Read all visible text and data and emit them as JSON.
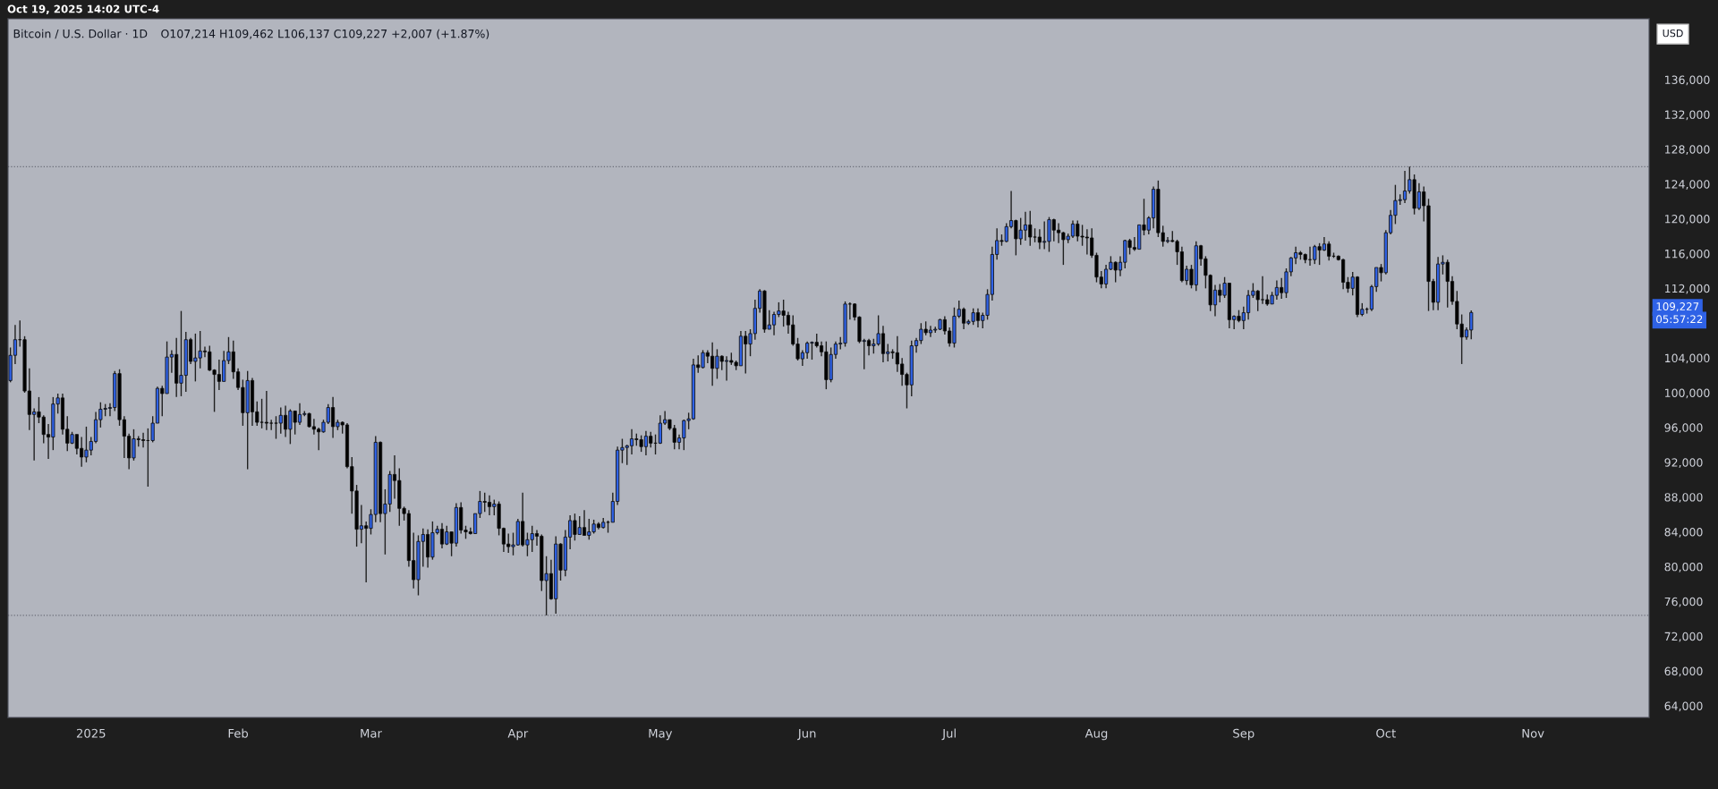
{
  "chart_data": {
    "type": "candlestick",
    "title": "Bitcoin / U.S. Dollar · 1D",
    "subtitle": "O107,214 H109,462 L106,137 C109,227 +2,007 (+1.87%)",
    "ylabel": "USD",
    "annotations": [
      "Oct 19, 2025 14:02 UTC-4",
      "109,227",
      "05:57:22"
    ],
    "x": [
      "2024-12-15",
      "2024-12-16",
      "2024-12-17",
      "2024-12-18",
      "2024-12-19",
      "2024-12-20",
      "2024-12-21",
      "2024-12-22",
      "2024-12-23",
      "2024-12-24",
      "2024-12-25",
      "2024-12-26",
      "2024-12-27",
      "2024-12-28",
      "2024-12-29",
      "2024-12-30",
      "2024-12-31",
      "2025-01-01",
      "2025-01-02",
      "2025-01-03",
      "2025-01-04",
      "2025-01-05",
      "2025-01-06",
      "2025-01-07",
      "2025-01-08",
      "2025-01-09",
      "2025-01-10",
      "2025-01-11",
      "2025-01-12",
      "2025-01-13",
      "2025-01-14",
      "2025-01-15",
      "2025-01-16",
      "2025-01-17",
      "2025-01-18",
      "2025-01-19",
      "2025-01-20",
      "2025-01-21",
      "2025-01-22",
      "2025-01-23",
      "2025-01-24",
      "2025-01-25",
      "2025-01-26",
      "2025-01-27",
      "2025-01-28",
      "2025-01-29",
      "2025-01-30",
      "2025-01-31",
      "2025-02-01",
      "2025-02-02",
      "2025-02-03",
      "2025-02-04",
      "2025-02-05",
      "2025-02-06",
      "2025-02-07",
      "2025-02-08",
      "2025-02-09",
      "2025-02-10",
      "2025-02-11",
      "2025-02-12",
      "2025-02-13",
      "2025-02-14",
      "2025-02-15",
      "2025-02-16",
      "2025-02-17",
      "2025-02-18",
      "2025-02-19",
      "2025-02-20",
      "2025-02-21",
      "2025-02-22",
      "2025-02-23",
      "2025-02-24",
      "2025-02-25",
      "2025-02-26",
      "2025-02-27",
      "2025-02-28",
      "2025-03-01",
      "2025-03-02",
      "2025-03-03",
      "2025-03-04",
      "2025-03-05",
      "2025-03-06",
      "2025-03-07",
      "2025-03-08",
      "2025-03-09",
      "2025-03-10",
      "2025-03-11",
      "2025-03-12",
      "2025-03-13",
      "2025-03-14",
      "2025-03-15",
      "2025-03-16",
      "2025-03-17",
      "2025-03-18",
      "2025-03-19",
      "2025-03-20",
      "2025-03-21",
      "2025-03-22",
      "2025-03-23",
      "2025-03-24",
      "2025-03-25",
      "2025-03-26",
      "2025-03-27",
      "2025-03-28",
      "2025-03-29",
      "2025-03-30",
      "2025-03-31",
      "2025-04-01",
      "2025-04-02",
      "2025-04-03",
      "2025-04-04",
      "2025-04-05",
      "2025-04-06",
      "2025-04-07",
      "2025-04-08",
      "2025-04-09",
      "2025-04-10",
      "2025-04-11",
      "2025-04-12",
      "2025-04-13",
      "2025-04-14",
      "2025-04-15",
      "2025-04-16",
      "2025-04-17",
      "2025-04-18",
      "2025-04-19",
      "2025-04-20",
      "2025-04-21",
      "2025-04-22",
      "2025-04-23",
      "2025-04-24",
      "2025-04-25",
      "2025-04-26",
      "2025-04-27",
      "2025-04-28",
      "2025-04-29",
      "2025-04-30",
      "2025-05-01",
      "2025-05-02",
      "2025-05-03",
      "2025-05-04",
      "2025-05-05",
      "2025-05-06",
      "2025-05-07",
      "2025-05-08",
      "2025-05-09",
      "2025-05-10",
      "2025-05-11",
      "2025-05-12",
      "2025-05-13",
      "2025-05-14",
      "2025-05-15",
      "2025-05-16",
      "2025-05-17",
      "2025-05-18",
      "2025-05-19",
      "2025-05-20",
      "2025-05-21",
      "2025-05-22",
      "2025-05-23",
      "2025-05-24",
      "2025-05-25",
      "2025-05-26",
      "2025-05-27",
      "2025-05-28",
      "2025-05-29",
      "2025-05-30",
      "2025-05-31",
      "2025-06-01",
      "2025-06-02",
      "2025-06-03",
      "2025-06-04",
      "2025-06-05",
      "2025-06-06",
      "2025-06-07",
      "2025-06-08",
      "2025-06-09",
      "2025-06-10",
      "2025-06-11",
      "2025-06-12",
      "2025-06-13",
      "2025-06-14",
      "2025-06-15",
      "2025-06-16",
      "2025-06-17",
      "2025-06-18",
      "2025-06-19",
      "2025-06-20",
      "2025-06-21",
      "2025-06-22",
      "2025-06-23",
      "2025-06-24",
      "2025-06-25",
      "2025-06-26",
      "2025-06-27",
      "2025-06-28",
      "2025-06-29",
      "2025-06-30",
      "2025-07-01",
      "2025-07-02",
      "2025-07-03",
      "2025-07-04",
      "2025-07-05",
      "2025-07-06",
      "2025-07-07",
      "2025-07-08",
      "2025-07-09",
      "2025-07-10",
      "2025-07-11",
      "2025-07-12",
      "2025-07-13",
      "2025-07-14",
      "2025-07-15",
      "2025-07-16",
      "2025-07-17",
      "2025-07-18",
      "2025-07-19",
      "2025-07-20",
      "2025-07-21",
      "2025-07-22",
      "2025-07-23",
      "2025-07-24",
      "2025-07-25",
      "2025-07-26",
      "2025-07-27",
      "2025-07-28",
      "2025-07-29",
      "2025-07-30",
      "2025-07-31",
      "2025-08-01",
      "2025-08-02",
      "2025-08-03",
      "2025-08-04",
      "2025-08-05",
      "2025-08-06",
      "2025-08-07",
      "2025-08-08",
      "2025-08-09",
      "2025-08-10",
      "2025-08-11",
      "2025-08-12",
      "2025-08-13",
      "2025-08-14",
      "2025-08-15",
      "2025-08-16",
      "2025-08-17",
      "2025-08-18",
      "2025-08-19",
      "2025-08-20",
      "2025-08-21",
      "2025-08-22",
      "2025-08-23",
      "2025-08-24",
      "2025-08-25",
      "2025-08-26",
      "2025-08-27",
      "2025-08-28",
      "2025-08-29",
      "2025-08-30",
      "2025-08-31",
      "2025-09-01",
      "2025-09-02",
      "2025-09-03",
      "2025-09-04",
      "2025-09-05",
      "2025-09-06",
      "2025-09-07",
      "2025-09-08",
      "2025-09-09",
      "2025-09-10",
      "2025-09-11",
      "2025-09-12",
      "2025-09-13",
      "2025-09-14",
      "2025-09-15",
      "2025-09-16",
      "2025-09-17",
      "2025-09-18",
      "2025-09-19",
      "2025-09-20",
      "2025-09-21",
      "2025-09-22",
      "2025-09-23",
      "2025-09-24",
      "2025-09-25",
      "2025-09-26",
      "2025-09-27",
      "2025-09-28",
      "2025-09-29",
      "2025-09-30",
      "2025-10-01",
      "2025-10-02",
      "2025-10-03",
      "2025-10-04",
      "2025-10-05",
      "2025-10-06",
      "2025-10-07",
      "2025-10-08",
      "2025-10-09",
      "2025-10-10",
      "2025-10-11",
      "2025-10-12",
      "2025-10-13",
      "2025-10-14",
      "2025-10-15",
      "2025-10-16",
      "2025-10-17",
      "2025-10-18",
      "2025-10-19"
    ],
    "ohlc": [
      [
        101400,
        105200,
        101200,
        104300
      ],
      [
        104300,
        107800,
        103300,
        106100
      ],
      [
        106100,
        108300,
        105300,
        106100
      ],
      [
        106100,
        106500,
        100000,
        100200
      ],
      [
        100200,
        102800,
        95700,
        97500
      ],
      [
        97500,
        98200,
        92200,
        97800
      ],
      [
        97800,
        99500,
        96500,
        97200
      ],
      [
        97200,
        97400,
        94200,
        95200
      ],
      [
        95200,
        96400,
        92400,
        94900
      ],
      [
        94900,
        99500,
        93400,
        98700
      ],
      [
        98700,
        99900,
        97600,
        99400
      ],
      [
        99400,
        99900,
        95200,
        95800
      ],
      [
        95800,
        97300,
        93300,
        94200
      ],
      [
        94200,
        95500,
        94100,
        95200
      ],
      [
        95200,
        95200,
        92900,
        93600
      ],
      [
        93600,
        94900,
        91500,
        92600
      ],
      [
        92600,
        96100,
        92000,
        93400
      ],
      [
        93400,
        94900,
        92800,
        94400
      ],
      [
        94400,
        97800,
        94200,
        96900
      ],
      [
        96900,
        98900,
        96000,
        98100
      ],
      [
        98100,
        98700,
        97300,
        98200
      ],
      [
        98200,
        98800,
        97300,
        98300
      ],
      [
        98300,
        102500,
        97900,
        102200
      ],
      [
        102200,
        102700,
        96200,
        96900
      ],
      [
        96900,
        97300,
        92500,
        95000
      ],
      [
        95000,
        95300,
        91200,
        92500
      ],
      [
        92500,
        95800,
        92200,
        94700
      ],
      [
        94700,
        95000,
        93800,
        94600
      ],
      [
        94600,
        95400,
        93700,
        94500
      ],
      [
        94500,
        95900,
        89200,
        94500
      ],
      [
        94500,
        97300,
        94300,
        96500
      ],
      [
        96500,
        100700,
        96500,
        100500
      ],
      [
        100500,
        100800,
        97300,
        99900
      ],
      [
        99900,
        105900,
        99900,
        104100
      ],
      [
        104100,
        104900,
        102300,
        104400
      ],
      [
        104400,
        106300,
        99500,
        101100
      ],
      [
        101100,
        109400,
        99600,
        102000
      ],
      [
        102000,
        107000,
        100100,
        106100
      ],
      [
        106100,
        106300,
        103300,
        103600
      ],
      [
        103600,
        106800,
        101300,
        104000
      ],
      [
        104000,
        107100,
        102800,
        104800
      ],
      [
        104800,
        105300,
        104100,
        104700
      ],
      [
        104700,
        105400,
        102500,
        102600
      ],
      [
        102600,
        102700,
        97800,
        102100
      ],
      [
        102100,
        103800,
        100300,
        101300
      ],
      [
        101300,
        104800,
        101300,
        103700
      ],
      [
        103700,
        106400,
        103300,
        104700
      ],
      [
        104700,
        106000,
        101600,
        102400
      ],
      [
        102400,
        102800,
        100300,
        100600
      ],
      [
        100600,
        101500,
        96200,
        97700
      ],
      [
        97700,
        102500,
        91200,
        101400
      ],
      [
        101400,
        101700,
        96200,
        97800
      ],
      [
        97800,
        99000,
        96200,
        96600
      ],
      [
        96600,
        99300,
        95900,
        96600
      ],
      [
        96600,
        100200,
        95700,
        96500
      ],
      [
        96500,
        96900,
        95700,
        96500
      ],
      [
        96500,
        97300,
        94700,
        96500
      ],
      [
        96500,
        98300,
        95300,
        97400
      ],
      [
        97400,
        98500,
        94900,
        95800
      ],
      [
        95800,
        98100,
        94100,
        97900
      ],
      [
        97900,
        97900,
        95200,
        96600
      ],
      [
        96600,
        98800,
        96300,
        97500
      ],
      [
        97500,
        97900,
        97300,
        97600
      ],
      [
        97600,
        97700,
        96000,
        96100
      ],
      [
        96100,
        97000,
        95200,
        95800
      ],
      [
        95800,
        96000,
        93400,
        95500
      ],
      [
        95500,
        96900,
        95400,
        96600
      ],
      [
        96600,
        98700,
        96400,
        98300
      ],
      [
        98300,
        99500,
        94800,
        96100
      ],
      [
        96100,
        96900,
        95700,
        96600
      ],
      [
        96600,
        96700,
        95300,
        96300
      ],
      [
        96300,
        96500,
        91300,
        91500
      ],
      [
        91500,
        92600,
        86100,
        88700
      ],
      [
        88700,
        89400,
        82300,
        84300
      ],
      [
        84300,
        87100,
        82700,
        84700
      ],
      [
        84700,
        85200,
        78200,
        84400
      ],
      [
        84400,
        86600,
        83700,
        86000
      ],
      [
        86000,
        95000,
        85100,
        94300
      ],
      [
        94300,
        94400,
        85100,
        86100
      ],
      [
        86100,
        88900,
        81400,
        87200
      ],
      [
        87200,
        91000,
        86300,
        90600
      ],
      [
        90600,
        92800,
        87800,
        89900
      ],
      [
        89900,
        91300,
        84700,
        86700
      ],
      [
        86700,
        86900,
        85300,
        86100
      ],
      [
        86100,
        86500,
        80000,
        80700
      ],
      [
        80700,
        83900,
        77500,
        78500
      ],
      [
        78500,
        83600,
        76700,
        82900
      ],
      [
        82900,
        84400,
        80000,
        83700
      ],
      [
        83700,
        84300,
        79900,
        81100
      ],
      [
        81100,
        85200,
        80800,
        83900
      ],
      [
        83900,
        84700,
        83700,
        84300
      ],
      [
        84300,
        85000,
        82100,
        82600
      ],
      [
        82600,
        84700,
        82500,
        84000
      ],
      [
        84000,
        84000,
        81200,
        82700
      ],
      [
        82700,
        87300,
        82300,
        86800
      ],
      [
        86800,
        87400,
        83800,
        84200
      ],
      [
        84200,
        84700,
        83200,
        84000
      ],
      [
        84000,
        84500,
        83700,
        83800
      ],
      [
        83800,
        86100,
        83800,
        86100
      ],
      [
        86100,
        88700,
        85600,
        87500
      ],
      [
        87500,
        88500,
        86300,
        87400
      ],
      [
        87400,
        88200,
        85900,
        86900
      ],
      [
        86900,
        87700,
        85900,
        87200
      ],
      [
        87200,
        87500,
        83600,
        84400
      ],
      [
        84400,
        84500,
        81700,
        82600
      ],
      [
        82600,
        83800,
        81600,
        82300
      ],
      [
        82300,
        83900,
        81300,
        82500
      ],
      [
        82500,
        85500,
        82400,
        85200
      ],
      [
        85200,
        88500,
        82300,
        82500
      ],
      [
        82500,
        83900,
        81200,
        83100
      ],
      [
        83100,
        84700,
        81700,
        83800
      ],
      [
        83800,
        84200,
        82400,
        83500
      ],
      [
        83500,
        83700,
        77200,
        78400
      ],
      [
        78400,
        81200,
        74400,
        79200
      ],
      [
        79200,
        80800,
        76200,
        76300
      ],
      [
        76300,
        83500,
        74600,
        82600
      ],
      [
        82600,
        82700,
        78400,
        79600
      ],
      [
        79600,
        84200,
        78900,
        83400
      ],
      [
        83400,
        85900,
        82000,
        85300
      ],
      [
        85300,
        86100,
        83000,
        83700
      ],
      [
        83700,
        85800,
        83700,
        84500
      ],
      [
        84500,
        86500,
        83600,
        83600
      ],
      [
        83600,
        85500,
        83100,
        84000
      ],
      [
        84000,
        85400,
        83800,
        84900
      ],
      [
        84900,
        85100,
        84300,
        84500
      ],
      [
        84500,
        85600,
        84400,
        85100
      ],
      [
        85100,
        85300,
        83900,
        85100
      ],
      [
        85100,
        88500,
        85100,
        87500
      ],
      [
        87500,
        93800,
        87100,
        93400
      ],
      [
        93400,
        94700,
        91900,
        93700
      ],
      [
        93700,
        94000,
        91700,
        93900
      ],
      [
        93900,
        95800,
        92900,
        94700
      ],
      [
        94700,
        95300,
        93900,
        94600
      ],
      [
        94600,
        95100,
        93200,
        93800
      ],
      [
        93800,
        95600,
        92800,
        95000
      ],
      [
        95000,
        95500,
        93700,
        94200
      ],
      [
        94200,
        95200,
        92900,
        94200
      ],
      [
        94200,
        97400,
        94100,
        96500
      ],
      [
        96500,
        97900,
        96300,
        96900
      ],
      [
        96900,
        96900,
        95700,
        95900
      ],
      [
        95900,
        96300,
        93500,
        94300
      ],
      [
        94300,
        95200,
        93500,
        94800
      ],
      [
        94800,
        96900,
        93400,
        96800
      ],
      [
        96800,
        97700,
        95800,
        97000
      ],
      [
        97000,
        103900,
        96900,
        103200
      ],
      [
        103200,
        104300,
        102300,
        102900
      ],
      [
        102900,
        104900,
        102800,
        104600
      ],
      [
        104600,
        104900,
        103400,
        104200
      ],
      [
        104200,
        105800,
        100800,
        102800
      ],
      [
        102800,
        105000,
        101600,
        104200
      ],
      [
        104200,
        104300,
        102600,
        103600
      ],
      [
        103600,
        104200,
        101400,
        103700
      ],
      [
        103700,
        104600,
        103200,
        103500
      ],
      [
        103500,
        103700,
        102600,
        103100
      ],
      [
        103100,
        107100,
        103100,
        106500
      ],
      [
        106500,
        107100,
        102200,
        105600
      ],
      [
        105600,
        107300,
        104200,
        106800
      ],
      [
        106800,
        110700,
        106100,
        109700
      ],
      [
        109700,
        111900,
        109200,
        111700
      ],
      [
        111700,
        111800,
        106900,
        107300
      ],
      [
        107300,
        109500,
        107300,
        107800
      ],
      [
        107800,
        109300,
        106600,
        109000
      ],
      [
        109000,
        110400,
        108700,
        109400
      ],
      [
        109400,
        110700,
        107600,
        108900
      ],
      [
        108900,
        109300,
        106800,
        107800
      ],
      [
        107800,
        108900,
        105400,
        105600
      ],
      [
        105600,
        106300,
        103700,
        103900
      ],
      [
        103900,
        104900,
        103100,
        104600
      ],
      [
        104600,
        105900,
        103900,
        105700
      ],
      [
        105700,
        105900,
        103800,
        105800
      ],
      [
        105800,
        106800,
        105200,
        105400
      ],
      [
        105400,
        105900,
        104200,
        104700
      ],
      [
        104700,
        105900,
        100400,
        101500
      ],
      [
        101500,
        105200,
        101200,
        104400
      ],
      [
        104400,
        105900,
        103900,
        105600
      ],
      [
        105600,
        106400,
        105000,
        105700
      ],
      [
        105700,
        110500,
        105300,
        110200
      ],
      [
        110200,
        110400,
        108400,
        110200
      ],
      [
        110200,
        110300,
        108300,
        108700
      ],
      [
        108700,
        108800,
        105700,
        105900
      ],
      [
        105900,
        106200,
        102700,
        106000
      ],
      [
        106000,
        106200,
        104300,
        105400
      ],
      [
        105400,
        106200,
        104500,
        105600
      ],
      [
        105600,
        108900,
        105400,
        106800
      ],
      [
        106800,
        107700,
        103500,
        104500
      ],
      [
        104500,
        105600,
        103600,
        104700
      ],
      [
        104700,
        105000,
        103900,
        104600
      ],
      [
        104600,
        106500,
        102400,
        103300
      ],
      [
        103300,
        104000,
        100800,
        102100
      ],
      [
        102100,
        102300,
        98200,
        100900
      ],
      [
        100900,
        106000,
        99600,
        105400
      ],
      [
        105400,
        106300,
        104600,
        106000
      ],
      [
        106000,
        108000,
        105600,
        107300
      ],
      [
        107300,
        108200,
        106600,
        106900
      ],
      [
        106900,
        107700,
        106400,
        107200
      ],
      [
        107200,
        107600,
        106900,
        107300
      ],
      [
        107300,
        108500,
        107200,
        108400
      ],
      [
        108400,
        108800,
        106700,
        107100
      ],
      [
        107100,
        107500,
        105300,
        105700
      ],
      [
        105700,
        109800,
        105200,
        108800
      ],
      [
        108800,
        110600,
        108600,
        109600
      ],
      [
        109600,
        109800,
        107300,
        108000
      ],
      [
        108000,
        108400,
        107800,
        108200
      ],
      [
        108200,
        109700,
        107800,
        109200
      ],
      [
        109200,
        109700,
        107500,
        108300
      ],
      [
        108300,
        109200,
        107400,
        108900
      ],
      [
        108900,
        111900,
        108400,
        111300
      ],
      [
        111300,
        116800,
        110600,
        115900
      ],
      [
        115900,
        118900,
        115300,
        117500
      ],
      [
        117500,
        118200,
        116900,
        117400
      ],
      [
        117400,
        119500,
        117300,
        119100
      ],
      [
        119100,
        123200,
        118900,
        119800
      ],
      [
        119800,
        119900,
        115800,
        117700
      ],
      [
        117700,
        120100,
        117000,
        118700
      ],
      [
        118700,
        120800,
        117500,
        119300
      ],
      [
        119300,
        120900,
        116900,
        117900
      ],
      [
        117900,
        118900,
        117300,
        117900
      ],
      [
        117900,
        118800,
        116500,
        117300
      ],
      [
        117300,
        119700,
        116500,
        117400
      ],
      [
        117400,
        120200,
        116200,
        119900
      ],
      [
        119900,
        120000,
        117400,
        118700
      ],
      [
        118700,
        119500,
        117200,
        118400
      ],
      [
        118400,
        118500,
        114700,
        117600
      ],
      [
        117600,
        118300,
        117200,
        118000
      ],
      [
        118000,
        119800,
        117800,
        119400
      ],
      [
        119400,
        119800,
        117400,
        118000
      ],
      [
        118000,
        119300,
        116900,
        117900
      ],
      [
        117900,
        118800,
        115900,
        117800
      ],
      [
        117800,
        118900,
        115500,
        115800
      ],
      [
        115800,
        116100,
        112700,
        113300
      ],
      [
        113300,
        114000,
        112000,
        112500
      ],
      [
        112500,
        114700,
        112000,
        114200
      ],
      [
        114200,
        115700,
        114100,
        115000
      ],
      [
        115000,
        115100,
        112700,
        114100
      ],
      [
        114100,
        115700,
        113400,
        115000
      ],
      [
        115000,
        117600,
        114300,
        117500
      ],
      [
        117500,
        117700,
        115900,
        116700
      ],
      [
        116700,
        117900,
        116300,
        116500
      ],
      [
        116500,
        119300,
        116500,
        119300
      ],
      [
        119300,
        122300,
        118100,
        118700
      ],
      [
        118700,
        120300,
        118200,
        120100
      ],
      [
        120100,
        123700,
        118900,
        123400
      ],
      [
        123400,
        124400,
        117900,
        118400
      ],
      [
        118400,
        119200,
        116800,
        117400
      ],
      [
        117400,
        117900,
        117200,
        117500
      ],
      [
        117500,
        118600,
        117300,
        117400
      ],
      [
        117400,
        117600,
        114700,
        116200
      ],
      [
        116200,
        116800,
        112700,
        112900
      ],
      [
        112900,
        114600,
        112400,
        114200
      ],
      [
        114200,
        114700,
        112000,
        112400
      ],
      [
        112400,
        117400,
        111700,
        116900
      ],
      [
        116900,
        117000,
        114600,
        115400
      ],
      [
        115400,
        115700,
        112000,
        113500
      ],
      [
        113500,
        113600,
        109400,
        110100
      ],
      [
        110100,
        112400,
        108800,
        111800
      ],
      [
        111800,
        112500,
        110400,
        111200
      ],
      [
        111200,
        113300,
        110900,
        112600
      ],
      [
        112600,
        112600,
        107400,
        108400
      ],
      [
        108400,
        108900,
        107300,
        108800
      ],
      [
        108800,
        109500,
        108100,
        108300
      ],
      [
        108300,
        109900,
        107300,
        109200
      ],
      [
        109200,
        111800,
        108400,
        111200
      ],
      [
        111200,
        112600,
        110900,
        111700
      ],
      [
        111700,
        111800,
        109400,
        110700
      ],
      [
        110700,
        113400,
        110200,
        110700
      ],
      [
        110700,
        111300,
        110000,
        110200
      ],
      [
        110200,
        111600,
        110200,
        111200
      ],
      [
        111200,
        112900,
        110700,
        112100
      ],
      [
        112100,
        113200,
        110800,
        111500
      ],
      [
        111500,
        114300,
        110900,
        113900
      ],
      [
        113900,
        115600,
        113400,
        115500
      ],
      [
        115500,
        116800,
        114800,
        116100
      ],
      [
        116100,
        116300,
        115300,
        115900
      ],
      [
        115900,
        116000,
        114900,
        115300
      ],
      [
        115300,
        116800,
        114600,
        115300
      ],
      [
        115300,
        117000,
        114800,
        116800
      ],
      [
        116800,
        117200,
        114700,
        116400
      ],
      [
        116400,
        117900,
        116300,
        117100
      ],
      [
        117100,
        117400,
        115200,
        115700
      ],
      [
        115700,
        116100,
        115500,
        115700
      ],
      [
        115700,
        115800,
        115200,
        115300
      ],
      [
        115300,
        115400,
        111900,
        112700
      ],
      [
        112700,
        113300,
        111500,
        112000
      ],
      [
        112000,
        113900,
        111200,
        113300
      ],
      [
        113300,
        113400,
        108700,
        109000
      ],
      [
        109000,
        110300,
        108800,
        109600
      ],
      [
        109600,
        109800,
        109100,
        109600
      ],
      [
        109600,
        112400,
        109400,
        112200
      ],
      [
        112200,
        114400,
        111600,
        114400
      ],
      [
        114400,
        114800,
        112800,
        113800
      ],
      [
        113800,
        118700,
        113600,
        118400
      ],
      [
        118400,
        121000,
        118200,
        120400
      ],
      [
        120400,
        123900,
        119400,
        122100
      ],
      [
        122100,
        122800,
        121600,
        122200
      ],
      [
        122200,
        125500,
        121800,
        123200
      ],
      [
        123200,
        126000,
        122900,
        124500
      ],
      [
        124500,
        125100,
        120500,
        121200
      ],
      [
        121200,
        124100,
        121000,
        123100
      ],
      [
        123100,
        123700,
        119700,
        121500
      ],
      [
        121500,
        122300,
        109400,
        112800
      ],
      [
        112800,
        113100,
        109500,
        110400
      ],
      [
        110400,
        115600,
        109500,
        114800
      ],
      [
        114800,
        115800,
        113600,
        115000
      ],
      [
        115000,
        115300,
        109800,
        112800
      ],
      [
        112800,
        113400,
        110100,
        110500
      ],
      [
        110500,
        111700,
        107300,
        107900
      ],
      [
        107900,
        109000,
        103300,
        106400
      ],
      [
        106400,
        107500,
        106100,
        107214
      ],
      [
        107214,
        109462,
        106137,
        109227
      ]
    ],
    "xlim": [
      "2024-12-14T12:00",
      "2025-11-25T12:00"
    ],
    "xticks": [
      {
        "value": "2025-01-01",
        "label": "2025"
      },
      {
        "value": "2025-02-01",
        "label": "Feb"
      },
      {
        "value": "2025-03-01",
        "label": "Mar"
      },
      {
        "value": "2025-04-01",
        "label": "Apr"
      },
      {
        "value": "2025-05-01",
        "label": "May"
      },
      {
        "value": "2025-06-01",
        "label": "Jun"
      },
      {
        "value": "2025-07-01",
        "label": "Jul"
      },
      {
        "value": "2025-08-01",
        "label": "Aug"
      },
      {
        "value": "2025-09-01",
        "label": "Sep"
      },
      {
        "value": "2025-10-01",
        "label": "Oct"
      },
      {
        "value": "2025-11-01",
        "label": "Nov"
      }
    ],
    "ylim": [
      62660,
      143000
    ],
    "yticks": [
      {
        "value": 64000,
        "label": "64,000"
      },
      {
        "value": 68000,
        "label": "68,000"
      },
      {
        "value": 72000,
        "label": "72,000"
      },
      {
        "value": 76000,
        "label": "76,000"
      },
      {
        "value": 80000,
        "label": "80,000"
      },
      {
        "value": 84000,
        "label": "84,000"
      },
      {
        "value": 88000,
        "label": "88,000"
      },
      {
        "value": 92000,
        "label": "92,000"
      },
      {
        "value": 96000,
        "label": "96,000"
      },
      {
        "value": 100000,
        "label": "100,000"
      },
      {
        "value": 104000,
        "label": "104,000"
      },
      {
        "value": 112000,
        "label": "112,000"
      },
      {
        "value": 116000,
        "label": "116,000"
      },
      {
        "value": 120000,
        "label": "120,000"
      },
      {
        "value": 124000,
        "label": "124,000"
      },
      {
        "value": 128000,
        "label": "128,000"
      },
      {
        "value": 132000,
        "label": "132,000"
      },
      {
        "value": 136000,
        "label": "136,000"
      }
    ],
    "ref_lines": [
      {
        "axis": "y",
        "value": 126000,
        "color": "#6a6d78",
        "line_style": "dotted"
      },
      {
        "axis": "y",
        "value": 74400,
        "color": "#6a6d78",
        "line_style": "dotted"
      }
    ]
  }
}
